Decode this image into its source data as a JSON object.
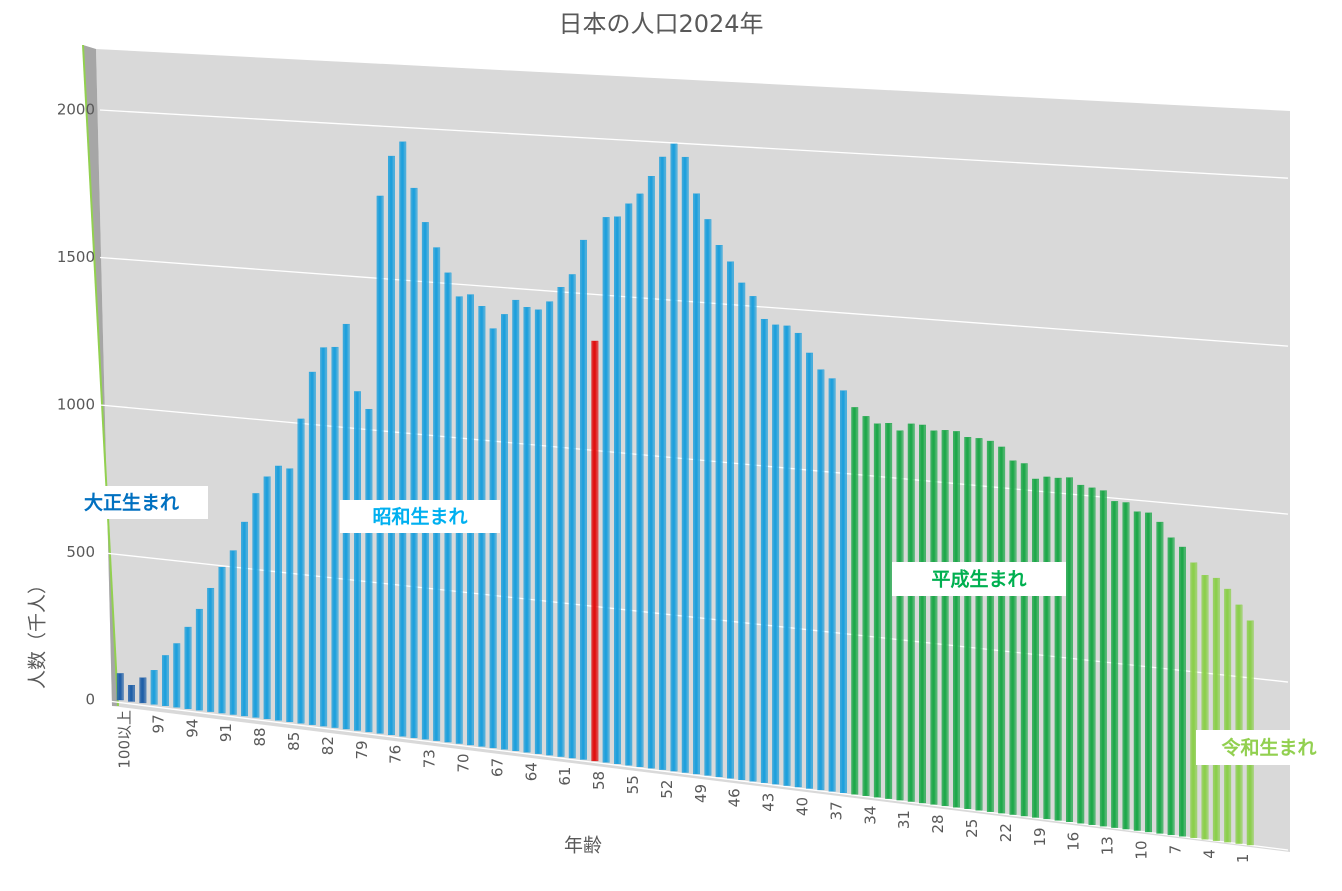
{
  "chart_data": {
    "type": "bar3d",
    "title": "日本の人口2024年",
    "x_label": "年齢",
    "y_label": "人数（千人）",
    "ylim": [
      0,
      2200
    ],
    "yticks": [
      0,
      500,
      1000,
      1500,
      2000
    ],
    "grid": true,
    "categories": [
      "100以上",
      null,
      null,
      "97",
      null,
      null,
      "94",
      null,
      null,
      "91",
      null,
      null,
      "88",
      null,
      null,
      "85",
      null,
      null,
      "82",
      null,
      null,
      "79",
      null,
      null,
      "76",
      null,
      null,
      "73",
      null,
      null,
      "70",
      null,
      null,
      "67",
      null,
      null,
      "64",
      null,
      null,
      "61",
      null,
      null,
      "58",
      null,
      null,
      "55",
      null,
      null,
      "52",
      null,
      null,
      "49",
      null,
      null,
      "46",
      null,
      null,
      "43",
      null,
      null,
      "40",
      null,
      null,
      "37",
      null,
      null,
      "34",
      null,
      null,
      "31",
      null,
      null,
      "28",
      null,
      null,
      "25",
      null,
      null,
      "22",
      null,
      null,
      "19",
      null,
      null,
      "16",
      null,
      null,
      "13",
      null,
      null,
      "10",
      null,
      null,
      "7",
      null,
      null,
      "4",
      null,
      null,
      "1",
      null
    ],
    "values": [
      90,
      55,
      85,
      115,
      170,
      215,
      275,
      340,
      415,
      490,
      550,
      650,
      750,
      810,
      850,
      845,
      1015,
      1175,
      1260,
      1265,
      1345,
      1125,
      1070,
      1780,
      1915,
      1965,
      1815,
      1705,
      1625,
      1545,
      1470,
      1480,
      1445,
      1375,
      1425,
      1475,
      1455,
      1450,
      1480,
      1530,
      1575,
      1690,
      1365,
      1770,
      1775,
      1820,
      1855,
      1915,
      1980,
      2025,
      1985,
      1870,
      1790,
      1710,
      1660,
      1595,
      1555,
      1485,
      1470,
      1470,
      1450,
      1390,
      1340,
      1315,
      1280,
      1230,
      1205,
      1185,
      1190,
      1170,
      1195,
      1195,
      1180,
      1185,
      1185,
      1170,
      1170,
      1165,
      1150,
      1110,
      1105,
      1060,
      1070,
      1070,
      1075,
      1055,
      1050,
      1045,
      1015,
      1015,
      990,
      990,
      965,
      920,
      895,
      850,
      815,
      810,
      780,
      735,
      690
    ],
    "colors": [
      "#1f5fa8",
      "#1f5fa8",
      "#1f5fa8",
      "#1ea0dc",
      "#1ea0dc",
      "#1ea0dc",
      "#1ea0dc",
      "#1ea0dc",
      "#1ea0dc",
      "#1ea0dc",
      "#1ea0dc",
      "#1ea0dc",
      "#1ea0dc",
      "#1ea0dc",
      "#1ea0dc",
      "#1ea0dc",
      "#1ea0dc",
      "#1ea0dc",
      "#1ea0dc",
      "#1ea0dc",
      "#1ea0dc",
      "#1ea0dc",
      "#1ea0dc",
      "#1ea0dc",
      "#1ea0dc",
      "#1ea0dc",
      "#1ea0dc",
      "#1ea0dc",
      "#1ea0dc",
      "#1ea0dc",
      "#1ea0dc",
      "#1ea0dc",
      "#1ea0dc",
      "#1ea0dc",
      "#1ea0dc",
      "#1ea0dc",
      "#1ea0dc",
      "#1ea0dc",
      "#1ea0dc",
      "#1ea0dc",
      "#1ea0dc",
      "#1ea0dc",
      "#e01010",
      "#1ea0dc",
      "#1ea0dc",
      "#1ea0dc",
      "#1ea0dc",
      "#1ea0dc",
      "#1ea0dc",
      "#1ea0dc",
      "#1ea0dc",
      "#1ea0dc",
      "#1ea0dc",
      "#1ea0dc",
      "#1ea0dc",
      "#1ea0dc",
      "#1ea0dc",
      "#1ea0dc",
      "#1ea0dc",
      "#1ea0dc",
      "#1ea0dc",
      "#1ea0dc",
      "#1ea0dc",
      "#1ea0dc",
      "#1ea0dc",
      "#1ea84a",
      "#1ea84a",
      "#1ea84a",
      "#1ea84a",
      "#1ea84a",
      "#1ea84a",
      "#1ea84a",
      "#1ea84a",
      "#1ea84a",
      "#1ea84a",
      "#1ea84a",
      "#1ea84a",
      "#1ea84a",
      "#1ea84a",
      "#1ea84a",
      "#1ea84a",
      "#1ea84a",
      "#1ea84a",
      "#1ea84a",
      "#1ea84a",
      "#1ea84a",
      "#1ea84a",
      "#1ea84a",
      "#1ea84a",
      "#1ea84a",
      "#1ea84a",
      "#1ea84a",
      "#1ea84a",
      "#1ea84a",
      "#1ea84a",
      "#8ccf4c",
      "#8ccf4c",
      "#8ccf4c",
      "#8ccf4c",
      "#8ccf4c",
      "#8ccf4c"
    ],
    "annotations": [
      {
        "text": "大正生まれ",
        "color": "#0070c0"
      },
      {
        "text": "昭和生まれ",
        "color": "#00b0f0"
      },
      {
        "text": "平成生まれ",
        "color": "#00b050"
      },
      {
        "text": "令和生まれ",
        "color": "#92d050"
      }
    ]
  }
}
